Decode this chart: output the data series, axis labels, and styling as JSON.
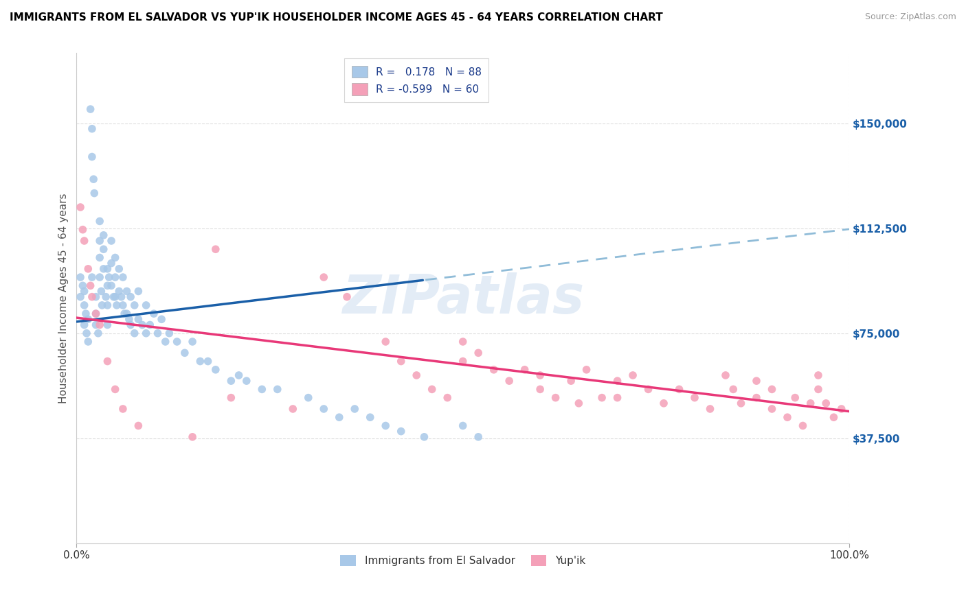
{
  "title": "IMMIGRANTS FROM EL SALVADOR VS YUP'IK HOUSEHOLDER INCOME AGES 45 - 64 YEARS CORRELATION CHART",
  "source": "Source: ZipAtlas.com",
  "ylabel": "Householder Income Ages 45 - 64 years",
  "r_blue": 0.178,
  "n_blue": 88,
  "r_pink": -0.599,
  "n_pink": 60,
  "blue_color": "#a8c8e8",
  "pink_color": "#f4a0b8",
  "trend_blue_solid": "#1a5fa8",
  "trend_blue_dashed": "#90bcd8",
  "trend_pink": "#e83878",
  "watermark": "ZIPatlas",
  "legend_label_blue": "Immigrants from El Salvador",
  "legend_label_pink": "Yup'ik",
  "xmin": 0.0,
  "xmax": 1.0,
  "ymin": 0,
  "ymax": 175000,
  "yticks": [
    37500,
    75000,
    112500,
    150000
  ],
  "ytick_labels": [
    "$37,500",
    "$75,000",
    "$112,500",
    "$150,000"
  ],
  "xtick_labels": [
    "0.0%",
    "100.0%"
  ],
  "blue_scatter_x": [
    0.005,
    0.005,
    0.008,
    0.01,
    0.01,
    0.01,
    0.012,
    0.013,
    0.015,
    0.015,
    0.018,
    0.02,
    0.02,
    0.02,
    0.022,
    0.023,
    0.025,
    0.025,
    0.025,
    0.028,
    0.03,
    0.03,
    0.03,
    0.03,
    0.032,
    0.033,
    0.035,
    0.035,
    0.035,
    0.038,
    0.04,
    0.04,
    0.04,
    0.04,
    0.042,
    0.045,
    0.045,
    0.045,
    0.048,
    0.05,
    0.05,
    0.05,
    0.052,
    0.055,
    0.055,
    0.058,
    0.06,
    0.06,
    0.062,
    0.065,
    0.065,
    0.068,
    0.07,
    0.07,
    0.075,
    0.075,
    0.08,
    0.08,
    0.085,
    0.09,
    0.09,
    0.095,
    0.1,
    0.105,
    0.11,
    0.115,
    0.12,
    0.13,
    0.14,
    0.15,
    0.16,
    0.17,
    0.18,
    0.2,
    0.21,
    0.22,
    0.24,
    0.26,
    0.3,
    0.32,
    0.34,
    0.36,
    0.38,
    0.4,
    0.42,
    0.45,
    0.5,
    0.52
  ],
  "blue_scatter_y": [
    95000,
    88000,
    92000,
    85000,
    90000,
    78000,
    82000,
    75000,
    80000,
    72000,
    155000,
    148000,
    138000,
    95000,
    130000,
    125000,
    88000,
    82000,
    78000,
    75000,
    115000,
    108000,
    102000,
    95000,
    90000,
    85000,
    110000,
    105000,
    98000,
    88000,
    98000,
    92000,
    85000,
    78000,
    95000,
    108000,
    100000,
    92000,
    88000,
    102000,
    95000,
    88000,
    85000,
    98000,
    90000,
    88000,
    95000,
    85000,
    82000,
    90000,
    82000,
    80000,
    88000,
    78000,
    85000,
    75000,
    90000,
    80000,
    78000,
    85000,
    75000,
    78000,
    82000,
    75000,
    80000,
    72000,
    75000,
    72000,
    68000,
    72000,
    65000,
    65000,
    62000,
    58000,
    60000,
    58000,
    55000,
    55000,
    52000,
    48000,
    45000,
    48000,
    45000,
    42000,
    40000,
    38000,
    42000,
    38000
  ],
  "pink_scatter_x": [
    0.005,
    0.008,
    0.01,
    0.015,
    0.018,
    0.02,
    0.025,
    0.03,
    0.04,
    0.05,
    0.06,
    0.08,
    0.15,
    0.18,
    0.2,
    0.28,
    0.32,
    0.35,
    0.4,
    0.42,
    0.44,
    0.46,
    0.48,
    0.5,
    0.5,
    0.52,
    0.54,
    0.56,
    0.58,
    0.6,
    0.6,
    0.62,
    0.64,
    0.65,
    0.66,
    0.68,
    0.7,
    0.7,
    0.72,
    0.74,
    0.76,
    0.78,
    0.8,
    0.82,
    0.84,
    0.85,
    0.86,
    0.88,
    0.88,
    0.9,
    0.9,
    0.92,
    0.93,
    0.94,
    0.95,
    0.96,
    0.96,
    0.97,
    0.98,
    0.99
  ],
  "pink_scatter_y": [
    120000,
    112000,
    108000,
    98000,
    92000,
    88000,
    82000,
    78000,
    65000,
    55000,
    48000,
    42000,
    38000,
    105000,
    52000,
    48000,
    95000,
    88000,
    72000,
    65000,
    60000,
    55000,
    52000,
    72000,
    65000,
    68000,
    62000,
    58000,
    62000,
    60000,
    55000,
    52000,
    58000,
    50000,
    62000,
    52000,
    58000,
    52000,
    60000,
    55000,
    50000,
    55000,
    52000,
    48000,
    60000,
    55000,
    50000,
    58000,
    52000,
    55000,
    48000,
    45000,
    52000,
    42000,
    50000,
    60000,
    55000,
    50000,
    45000,
    48000
  ]
}
